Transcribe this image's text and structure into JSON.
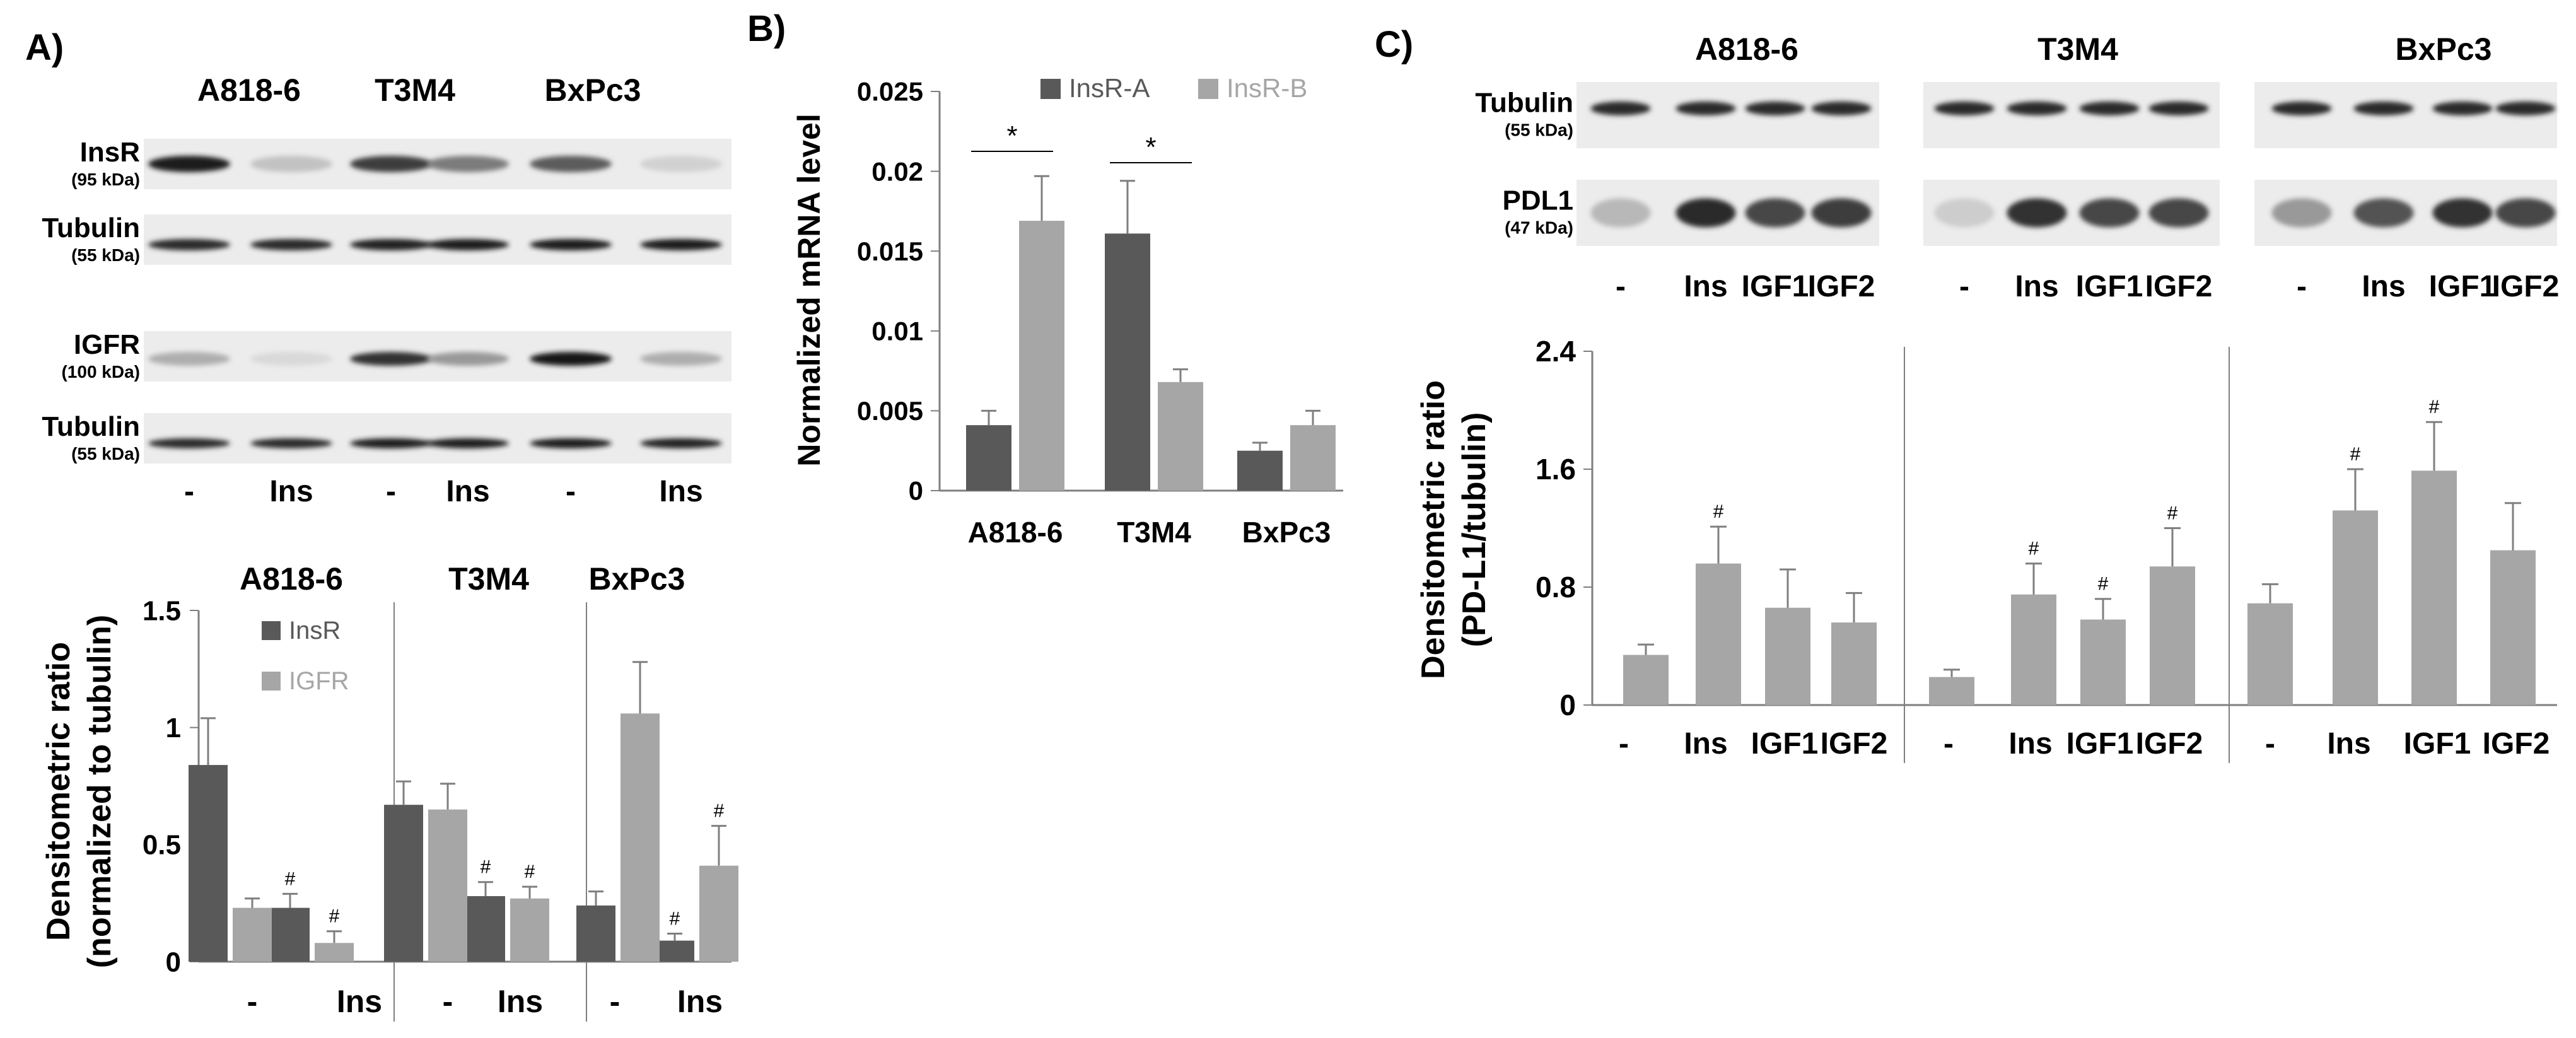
{
  "panel_labels": {
    "a": "A)",
    "b": "B)",
    "c": "C)"
  },
  "colors": {
    "dark": "#595959",
    "light": "#A6A6A6",
    "axis": "#7f7f7f",
    "text": "#000000"
  },
  "blots": {
    "a": {
      "cell_lines": [
        "A818-6",
        "T3M4",
        "BxPc3"
      ],
      "lane_labels": [
        "-",
        "Ins",
        "-",
        "Ins",
        "-",
        "Ins"
      ],
      "strips": [
        {
          "name": "InsR",
          "kda": "(95 kDa)",
          "intensity": [
            0.95,
            0.15,
            0.8,
            0.5,
            0.65,
            0.08
          ]
        },
        {
          "name": "Tubulin",
          "kda": "(55 kDa)",
          "intensity": [
            0.9,
            0.9,
            0.92,
            0.95,
            0.95,
            0.95
          ]
        },
        {
          "name": "IGFR",
          "kda": "(100 kDa)",
          "intensity": [
            0.25,
            0.04,
            0.85,
            0.35,
            1.0,
            0.25
          ]
        },
        {
          "name": "Tubulin",
          "kda": "(55 kDa)",
          "intensity": [
            0.9,
            0.9,
            0.95,
            0.95,
            0.95,
            0.92
          ]
        }
      ]
    },
    "c": {
      "cell_lines": [
        "A818-6",
        "T3M4",
        "BxPc3"
      ],
      "lane_labels": [
        "-",
        "Ins",
        "IGF1",
        "IGF2",
        "-",
        "Ins",
        "IGF1",
        "IGF2",
        "-",
        "Ins",
        "IGF1",
        "IGF2"
      ],
      "strips": [
        {
          "name": "Tubulin",
          "kda": "(55 kDa)",
          "intensity": [
            0.9,
            0.9,
            0.9,
            0.9,
            0.9,
            0.9,
            0.9,
            0.9,
            0.9,
            0.9,
            0.9,
            0.9
          ]
        },
        {
          "name": "PDL1",
          "kda": "(47 kDa)",
          "intensity": [
            0.2,
            0.9,
            0.75,
            0.8,
            0.1,
            0.85,
            0.75,
            0.75,
            0.35,
            0.7,
            0.85,
            0.75
          ]
        }
      ]
    }
  },
  "chart_data": [
    {
      "id": "chartA",
      "type": "bar",
      "title": "",
      "xlabel": "",
      "ylabel": "Densitometric ratio",
      "ylabel2": "(normalized to tubulin)",
      "ylim": [
        0,
        1.5
      ],
      "yticks": [
        0,
        0.5,
        1,
        1.5
      ],
      "ytick_labels": [
        "0",
        "0.5",
        "1",
        "1.5"
      ],
      "groups": [
        "A818-6",
        "T3M4",
        "BxPc3"
      ],
      "categories": [
        "-",
        "Ins",
        "-",
        "Ins",
        "-",
        "Ins"
      ],
      "legend": [
        "InsR",
        "IGFR"
      ],
      "series": [
        {
          "name": "InsR",
          "values": [
            0.84,
            0.23,
            0.67,
            0.28,
            0.24,
            0.09
          ],
          "errors": [
            0.2,
            0.06,
            0.1,
            0.06,
            0.06,
            0.03
          ],
          "marks": [
            "",
            "#",
            "",
            "#",
            "",
            "#"
          ]
        },
        {
          "name": "IGFR",
          "values": [
            0.23,
            0.08,
            0.65,
            0.27,
            1.06,
            0.41
          ],
          "errors": [
            0.04,
            0.05,
            0.11,
            0.05,
            0.22,
            0.17
          ],
          "marks": [
            "",
            "#",
            "",
            "#",
            "",
            "#"
          ]
        }
      ]
    },
    {
      "id": "chartB",
      "type": "bar",
      "title": "",
      "xlabel": "",
      "ylabel": "Normalized mRNA level",
      "ylim": [
        0,
        0.025
      ],
      "yticks": [
        0,
        0.005,
        0.01,
        0.015,
        0.02,
        0.025
      ],
      "ytick_labels": [
        "0",
        "0.005",
        "0.01",
        "0.015",
        "0.02",
        "0.025"
      ],
      "categories": [
        "A818-6",
        "T3M4",
        "BxPc3"
      ],
      "legend": [
        "InsR-A",
        "InsR-B"
      ],
      "series": [
        {
          "name": "InsR-A",
          "values": [
            0.0041,
            0.0161,
            0.0025
          ],
          "errors": [
            0.0009,
            0.0033,
            0.0005
          ]
        },
        {
          "name": "InsR-B",
          "values": [
            0.0169,
            0.0068,
            0.0041
          ],
          "errors": [
            0.0028,
            0.0008,
            0.0009
          ]
        }
      ],
      "significance": [
        {
          "category": "A818-6",
          "label": "*"
        },
        {
          "category": "T3M4",
          "label": "*"
        }
      ]
    },
    {
      "id": "chartC",
      "type": "bar",
      "title": "",
      "xlabel": "",
      "ylabel": "Densitometric ratio",
      "ylabel2": "(PD-L1/tubulin)",
      "ylim": [
        0,
        2.4
      ],
      "yticks": [
        0,
        0.8,
        1.6,
        2.4
      ],
      "ytick_labels": [
        "0",
        "0.8",
        "1.6",
        "2.4"
      ],
      "groups": [
        "A818-6",
        "T3M4",
        "BxPc3"
      ],
      "categories": [
        "-",
        "Ins",
        "IGF1",
        "IGF2",
        "-",
        "Ins",
        "IGF1",
        "IGF2",
        "-",
        "Ins",
        "IGF1",
        "IGF2"
      ],
      "series": [
        {
          "name": "PD-L1/tubulin",
          "values": [
            0.34,
            0.96,
            0.66,
            0.56,
            0.19,
            0.75,
            0.58,
            0.94,
            0.69,
            1.32,
            1.59,
            1.05
          ],
          "errors": [
            0.07,
            0.25,
            0.26,
            0.2,
            0.05,
            0.21,
            0.14,
            0.26,
            0.13,
            0.28,
            0.33,
            0.32
          ],
          "marks": [
            "",
            "#",
            "",
            "",
            "",
            "#",
            "#",
            "#",
            "",
            "#",
            "#",
            ""
          ]
        }
      ]
    }
  ]
}
